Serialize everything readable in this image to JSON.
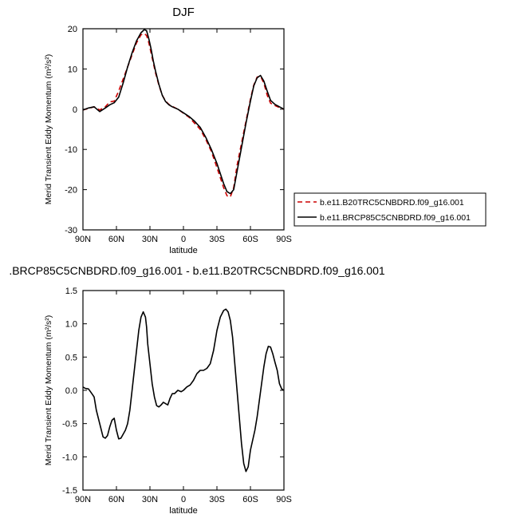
{
  "chart_data": [
    {
      "type": "line",
      "title": "DJF",
      "xlabel": "latitude",
      "ylabel": "Merid Transient Eddy Momentum (m²/s²)",
      "xlim": [
        90,
        -90
      ],
      "ylim": [
        -30,
        20
      ],
      "x_ticks": [
        {
          "value": 90,
          "label": "90N"
        },
        {
          "value": 60,
          "label": "60N"
        },
        {
          "value": 30,
          "label": "30N"
        },
        {
          "value": 0,
          "label": "0"
        },
        {
          "value": -30,
          "label": "30S"
        },
        {
          "value": -60,
          "label": "60S"
        },
        {
          "value": -90,
          "label": "90S"
        }
      ],
      "y_ticks": [
        20,
        10,
        0,
        -10,
        -20,
        -30
      ],
      "legend_position": "right",
      "series": [
        {
          "name": "b.e11.B20TRC5CNBDRD.f09_g16.001",
          "color": "#cc0000",
          "dash": "dashed",
          "x": [
            90,
            85,
            80,
            75,
            70,
            66,
            62,
            58,
            54,
            50,
            46,
            42,
            38,
            35,
            33,
            31,
            29,
            27,
            25,
            22,
            19,
            16,
            13,
            10,
            5,
            0,
            -5,
            -10,
            -15,
            -20,
            -25,
            -30,
            -33,
            -36,
            -39,
            -42,
            -45,
            -48,
            -52,
            -56,
            -60,
            -63,
            -66,
            -69,
            -72,
            -75,
            -78,
            -82,
            -86,
            -90
          ],
          "y": [
            -0.2,
            0.2,
            0.6,
            -0.2,
            0.6,
            1.8,
            2.0,
            4.5,
            7.5,
            10.5,
            13.5,
            16.5,
            18.5,
            18.8,
            18.3,
            16.5,
            14.0,
            11.5,
            9.0,
            6.0,
            3.5,
            2.0,
            1.2,
            0.7,
            0.0,
            -1.0,
            -2.0,
            -3.5,
            -5.0,
            -7.5,
            -10.5,
            -14.5,
            -17.0,
            -19.5,
            -21.5,
            -21.8,
            -19.5,
            -14.0,
            -8.5,
            -3.0,
            2.5,
            6.0,
            8.0,
            8.2,
            6.5,
            3.5,
            1.5,
            0.9,
            0.4,
            0.0
          ]
        },
        {
          "name": "b.e11.BRCP85C5CNBDRD.f09_g16.001",
          "color": "#000000",
          "dash": "solid",
          "x": [
            90,
            85,
            80,
            75,
            70,
            66,
            62,
            58,
            54,
            50,
            46,
            42,
            38,
            35,
            33,
            31,
            29,
            27,
            25,
            22,
            19,
            16,
            13,
            10,
            5,
            0,
            -5,
            -10,
            -15,
            -20,
            -25,
            -30,
            -33,
            -36,
            -39,
            -42,
            -45,
            -48,
            -52,
            -56,
            -60,
            -63,
            -66,
            -69,
            -72,
            -75,
            -78,
            -82,
            -86,
            -90
          ],
          "y": [
            -0.2,
            0.3,
            0.6,
            -0.6,
            0.3,
            1.1,
            1.6,
            3.0,
            6.5,
            10.5,
            14.0,
            17.0,
            19.0,
            19.8,
            19.5,
            17.5,
            15.0,
            12.0,
            9.5,
            6.2,
            3.5,
            1.9,
            1.1,
            0.6,
            0.0,
            -0.9,
            -1.8,
            -3.0,
            -4.5,
            -7.0,
            -10.0,
            -13.5,
            -16.0,
            -18.5,
            -20.5,
            -21.0,
            -20.0,
            -15.5,
            -9.5,
            -3.5,
            2.0,
            5.8,
            7.8,
            8.4,
            7.0,
            4.5,
            2.2,
            1.2,
            0.6,
            0.0
          ]
        }
      ]
    },
    {
      "type": "line",
      "title": ".BRCP85C5CNBDRD.f09_g16.001 - b.e11.B20TRC5CNBDRD.f09_g16.001",
      "xlabel": "latitude",
      "ylabel": "Merid Transient Eddy Momentum (m²/s²)",
      "xlim": [
        90,
        -90
      ],
      "ylim": [
        -1.5,
        1.5
      ],
      "x_ticks": [
        {
          "value": 90,
          "label": "90N"
        },
        {
          "value": 60,
          "label": "60N"
        },
        {
          "value": 30,
          "label": "30N"
        },
        {
          "value": 0,
          "label": "0"
        },
        {
          "value": -30,
          "label": "30S"
        },
        {
          "value": -60,
          "label": "60S"
        },
        {
          "value": -90,
          "label": "90S"
        }
      ],
      "y_ticks": [
        1.5,
        1.0,
        0.5,
        0.0,
        -0.5,
        -1.0,
        -1.5
      ],
      "series": [
        {
          "color": "#000000",
          "dash": "solid",
          "x": [
            90,
            88,
            85,
            82,
            80,
            78,
            75,
            72,
            70,
            68,
            66,
            64,
            62,
            60,
            58,
            56,
            54,
            52,
            50,
            48,
            46,
            44,
            42,
            40,
            38,
            36,
            34,
            33,
            32,
            30,
            28,
            26,
            24,
            22,
            20,
            18,
            16,
            14,
            12,
            10,
            8,
            5,
            2,
            0,
            -3,
            -6,
            -9,
            -12,
            -15,
            -18,
            -21,
            -24,
            -27,
            -30,
            -33,
            -36,
            -38,
            -40,
            -42,
            -44,
            -46,
            -48,
            -50,
            -52,
            -54,
            -56,
            -58,
            -60,
            -62,
            -64,
            -66,
            -68,
            -70,
            -72,
            -74,
            -76,
            -78,
            -80,
            -82,
            -84,
            -86,
            -88,
            -90
          ],
          "y": [
            0.05,
            0.03,
            0.02,
            -0.05,
            -0.1,
            -0.3,
            -0.5,
            -0.7,
            -0.72,
            -0.68,
            -0.55,
            -0.45,
            -0.42,
            -0.6,
            -0.73,
            -0.72,
            -0.66,
            -0.6,
            -0.5,
            -0.3,
            0.0,
            0.3,
            0.6,
            0.9,
            1.1,
            1.18,
            1.1,
            0.95,
            0.7,
            0.4,
            0.1,
            -0.1,
            -0.23,
            -0.25,
            -0.22,
            -0.18,
            -0.2,
            -0.22,
            -0.12,
            -0.05,
            -0.05,
            0.0,
            -0.02,
            0.0,
            0.05,
            0.08,
            0.15,
            0.25,
            0.3,
            0.3,
            0.33,
            0.4,
            0.6,
            0.9,
            1.1,
            1.2,
            1.22,
            1.18,
            1.05,
            0.8,
            0.4,
            0.0,
            -0.4,
            -0.8,
            -1.1,
            -1.22,
            -1.15,
            -0.9,
            -0.75,
            -0.6,
            -0.4,
            -0.15,
            0.1,
            0.35,
            0.55,
            0.66,
            0.65,
            0.55,
            0.42,
            0.3,
            0.1,
            0.02,
            0.0
          ]
        }
      ]
    }
  ]
}
